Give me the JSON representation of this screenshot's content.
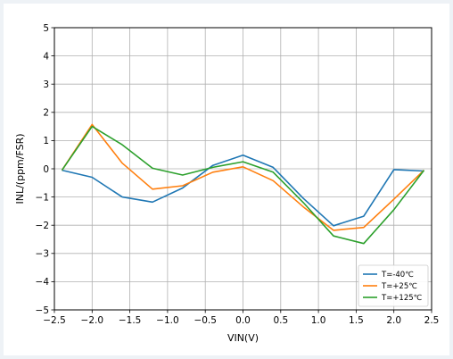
{
  "chart_data": {
    "type": "line",
    "title": "",
    "xlabel": "VIN(V)",
    "ylabel": "INL/(ppm/FSR)",
    "xlim": [
      -2.5,
      2.5
    ],
    "ylim": [
      -5,
      5
    ],
    "xticks": [
      -2.5,
      -2.0,
      -1.5,
      -1.0,
      -0.5,
      0.0,
      0.5,
      1.0,
      1.5,
      2.0,
      2.5
    ],
    "xtick_labels": [
      "−2.5",
      "−2.0",
      "−1.5",
      "−1.0",
      "−0.5",
      "0.0",
      "0.5",
      "1.0",
      "1.5",
      "2.0",
      "2.5"
    ],
    "yticks": [
      -5,
      -4,
      -3,
      -2,
      -1,
      0,
      1,
      2,
      3,
      4,
      5
    ],
    "ytick_labels": [
      "−5",
      "−4",
      "−3",
      "−2",
      "−1",
      "0",
      "1",
      "2",
      "3",
      "4",
      "5"
    ],
    "grid": true,
    "legend_position": "bottom-right",
    "x": [
      -2.4,
      -2.0,
      -1.6,
      -1.2,
      -0.8,
      -0.4,
      0.0,
      0.4,
      0.8,
      1.2,
      1.6,
      2.0,
      2.4
    ],
    "series": [
      {
        "name": "T=-40℃",
        "color": "#1f77b4",
        "values": [
          -0.05,
          -0.3,
          -1.0,
          -1.18,
          -0.68,
          0.12,
          0.48,
          0.05,
          -1.05,
          -2.02,
          -1.68,
          -0.03,
          -0.08
        ]
      },
      {
        "name": "T=+25℃",
        "color": "#ff7f0e",
        "values": [
          -0.05,
          1.57,
          0.2,
          -0.72,
          -0.6,
          -0.12,
          0.07,
          -0.42,
          -1.35,
          -2.18,
          -2.08,
          -1.08,
          -0.05
        ]
      },
      {
        "name": "T=+125℃",
        "color": "#2ca02c",
        "values": [
          -0.05,
          1.5,
          0.85,
          0.02,
          -0.22,
          0.05,
          0.25,
          -0.12,
          -1.2,
          -2.38,
          -2.65,
          -1.45,
          -0.05
        ]
      }
    ]
  }
}
